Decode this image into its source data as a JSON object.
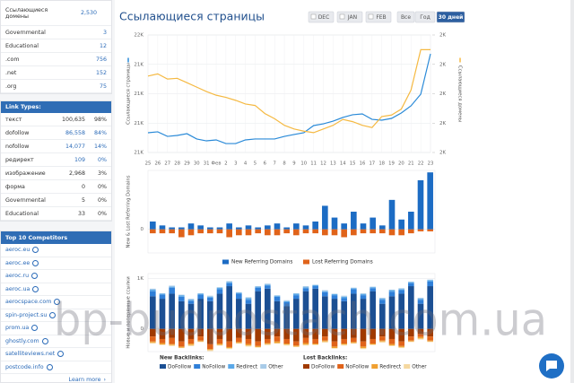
{
  "sidebar": {
    "domains": {
      "rows": [
        [
          "Ссылающиеся домены",
          "2,530"
        ],
        [
          "Governmental",
          "3"
        ],
        [
          "Educational",
          "12"
        ],
        [
          ".com",
          "756"
        ],
        [
          ".net",
          "152"
        ],
        [
          ".org",
          "75"
        ]
      ]
    },
    "link_types": {
      "title": "Link Types:",
      "rows": [
        [
          "текст",
          "100,635",
          "98%"
        ],
        [
          "dofollow",
          "86,558",
          "84%"
        ],
        [
          "nofollow",
          "14,077",
          "14%"
        ],
        [
          "редирект",
          "109",
          "0%"
        ],
        [
          "изображение",
          "2,968",
          "3%"
        ],
        [
          "форма",
          "0",
          "0%"
        ],
        [
          "Governmental",
          "5",
          "0%"
        ],
        [
          "Educational",
          "33",
          "0%"
        ]
      ]
    },
    "competitors": {
      "title": "Top 10 Competitors",
      "items": [
        "aeroc.eu",
        "aeroc.ee",
        "aeroc.ru",
        "aeroc.ua",
        "aerocspace.com",
        "spin-project.su",
        "prom.ua",
        "ghostly.com",
        "satelliteviews.net",
        "postcode.info"
      ],
      "more": "Learn more"
    }
  },
  "header": {
    "title": "Ссылающиеся страницы",
    "buttons": [
      {
        "label": "DEC",
        "checkbox": true
      },
      {
        "label": "JAN",
        "checkbox": true
      },
      {
        "label": "FEB",
        "checkbox": true
      },
      {
        "label": "Все",
        "checkbox": false
      },
      {
        "label": "Год",
        "checkbox": false
      },
      {
        "label": "30 дней",
        "checkbox": false
      }
    ],
    "active_button": 5
  },
  "watermark": "bp-budpostach.com.ua",
  "chart_data": [
    {
      "type": "line",
      "y_label": "Ссылающиеся страницы",
      "y2_label": "Ссылающиеся домены",
      "categories": [
        "25",
        "26",
        "27",
        "28",
        "29",
        "30",
        "31",
        "Фев",
        "2",
        "3",
        "4",
        "5",
        "6",
        "7",
        "8",
        "9",
        "10",
        "11",
        "12",
        "13",
        "14",
        "15",
        "16",
        "17",
        "18",
        "19",
        "20",
        "21",
        "22",
        "23"
      ],
      "series": [
        {
          "color": "#2a8ad8",
          "values": [
            20868,
            20876,
            20837,
            20845,
            20860,
            20815,
            20799,
            20807,
            20776,
            20776,
            20807,
            20815,
            20815,
            20815,
            20837,
            20853,
            20868,
            20929,
            20944,
            20967,
            20998,
            21021,
            21028,
            20982,
            20975,
            20990,
            21036,
            21097,
            21196,
            21540
          ]
        },
        {
          "color": "#f5b942",
          "axis": "y2",
          "values": [
            2484,
            2487,
            2480,
            2481,
            2475,
            2469,
            2463,
            2458,
            2455,
            2451,
            2446,
            2444,
            2433,
            2426,
            2417,
            2412,
            2409,
            2407,
            2412,
            2417,
            2425,
            2422,
            2417,
            2414,
            2429,
            2431,
            2439,
            2465,
            2520,
            2520
          ]
        }
      ],
      "ylim": [
        20700,
        21700
      ],
      "yticks": [
        {
          "value": 20700,
          "label": "21K"
        },
        {
          "value": 20950,
          "label": "21K"
        },
        {
          "value": 21200,
          "label": "21K"
        },
        {
          "value": 21450,
          "label": "21K"
        },
        {
          "value": 21700,
          "label": "22K"
        }
      ],
      "y2lim": [
        2380,
        2540
      ],
      "y2ticks": [
        {
          "value": 2380,
          "label": "2K"
        },
        {
          "value": 2420,
          "label": "2K"
        },
        {
          "value": 2460,
          "label": "2K"
        },
        {
          "value": 2500,
          "label": "2K"
        },
        {
          "value": 2540,
          "label": "2K"
        }
      ],
      "grid": true
    },
    {
      "type": "bar",
      "y_label": "New & Lost Referring Domains",
      "series": [
        {
          "name": "New Referring Domains",
          "color": "#1c6cc4",
          "values": [
            4,
            2,
            1,
            1,
            3,
            2,
            1,
            1,
            3,
            1,
            2,
            1,
            2,
            3,
            1,
            3,
            2,
            4,
            12,
            6,
            3,
            9,
            3,
            6,
            2,
            15,
            5,
            9,
            25,
            29
          ]
        },
        {
          "name": "Lost Referring Domains",
          "color": "#e0631a",
          "values": [
            -2,
            -2,
            -2,
            -4,
            -3,
            -2,
            -2,
            -2,
            -4,
            -3,
            -3,
            -2,
            -3,
            -3,
            -2,
            -3,
            -2,
            -2,
            -3,
            -3,
            -4,
            -3,
            -2,
            -2,
            -2,
            -3,
            -3,
            -2,
            -1,
            -1
          ]
        }
      ],
      "ylim": [
        -12,
        30
      ],
      "yticks": [
        0
      ],
      "grid": true
    },
    {
      "type": "bar",
      "y_label": "Новые и потерянные ссылки",
      "legend_groups": [
        {
          "title": "New Backlinks:",
          "series": [
            {
              "name": "DoFollow",
              "color": "#1b4f93",
              "values": [
                650,
                600,
                700,
                550,
                500,
                600,
                550,
                700,
                850,
                600,
                500,
                750,
                800,
                550,
                450,
                600,
                750,
                800,
                650,
                600,
                550,
                700,
                600,
                750,
                500,
                650,
                700,
                850,
                500,
                850
              ]
            },
            {
              "name": "NoFollow",
              "color": "#2f7fd8",
              "values": [
                100,
                80,
                120,
                90,
                60,
                80,
                70,
                90,
                60,
                100,
                80,
                70,
                60,
                90,
                80,
                70,
                60,
                50,
                80,
                70,
                60,
                90,
                70,
                60,
                80,
                90,
                70,
                60,
                80,
                90
              ]
            },
            {
              "name": "Redirect",
              "color": "#5aa8e8",
              "values": [
                30,
                20,
                20,
                30,
                20,
                20,
                20,
                30,
                20,
                20,
                30,
                20,
                20,
                20,
                20,
                30,
                20,
                20,
                20,
                20,
                30,
                20,
                20,
                20,
                20,
                30,
                20,
                20,
                20,
                30
              ]
            },
            {
              "name": "Other",
              "color": "#a8cbe8",
              "values": [
                20,
                10,
                20,
                10,
                20,
                10,
                20,
                10,
                20,
                10,
                20,
                10,
                20,
                10,
                20,
                10,
                20,
                10,
                20,
                10,
                20,
                10,
                20,
                10,
                20,
                10,
                20,
                10,
                20,
                10
              ]
            }
          ]
        },
        {
          "title": "Lost Backlinks:",
          "series": [
            {
              "name": "DoFollow",
              "color": "#a03a00",
              "values": [
                -150,
                -200,
                -180,
                -250,
                -200,
                -150,
                -300,
                -200,
                -250,
                -180,
                -200,
                -250,
                -200,
                -150,
                -200,
                -250,
                -180,
                -200,
                -150,
                -250,
                -200,
                -180,
                -250,
                -200,
                -150,
                -200,
                -250,
                -150,
                -100,
                -150
              ]
            },
            {
              "name": "NoFollow",
              "color": "#e0631a",
              "values": [
                -100,
                -80,
                -120,
                -100,
                -90,
                -80,
                -100,
                -90,
                -110,
                -80,
                -100,
                -90,
                -80,
                -100,
                -90,
                -80,
                -100,
                -90,
                -80,
                -100,
                -90,
                -80,
                -100,
                -90,
                -80,
                -100,
                -90,
                -80,
                -60,
                -80
              ]
            },
            {
              "name": "Redirect",
              "color": "#f0a030",
              "values": [
                -20,
                -30,
                -20,
                -20,
                -30,
                -20,
                -20,
                -30,
                -20,
                -20,
                -30,
                -20,
                -20,
                -30,
                -20,
                -20,
                -30,
                -20,
                -20,
                -30,
                -20,
                -20,
                -30,
                -20,
                -20,
                -30,
                -20,
                -20,
                -30,
                -20
              ]
            },
            {
              "name": "Other",
              "color": "#f5d8a0",
              "values": [
                -20,
                -10,
                -20,
                -10,
                -20,
                -10,
                -20,
                -10,
                -20,
                -10,
                -20,
                -10,
                -20,
                -10,
                -20,
                -10,
                -20,
                -10,
                -20,
                -10,
                -20,
                -10,
                -20,
                -10,
                -20,
                -10,
                -20,
                -10,
                -20,
                -10
              ]
            }
          ]
        }
      ],
      "ylim": [
        -450,
        1100
      ],
      "yticks": [
        {
          "value": 1000,
          "label": "1K"
        },
        0
      ],
      "grid": true
    }
  ]
}
